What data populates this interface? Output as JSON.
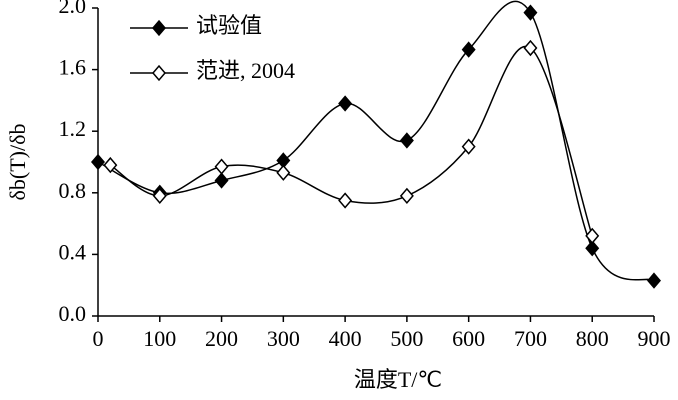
{
  "chart_data": {
    "type": "line",
    "xlabel": "温度T/℃",
    "ylabel": "δb(T)/δb",
    "xlim": [
      0,
      900
    ],
    "xticks": [
      0,
      100,
      200,
      300,
      400,
      500,
      600,
      700,
      800,
      900
    ],
    "ylim": [
      0,
      2
    ],
    "yticks": [
      {
        "value": 0,
        "label": "0.0"
      },
      {
        "value": 0.4,
        "label": "0.4"
      },
      {
        "value": 0.8,
        "label": "0.8"
      },
      {
        "value": 1.2,
        "label": "1.2"
      },
      {
        "value": 1.6,
        "label": "1.6"
      },
      {
        "value": 2,
        "label": "2.0"
      }
    ],
    "legend": "upper left",
    "series": [
      {
        "name": "试验值",
        "color": "#000000",
        "marker": "filled-diamond",
        "x": [
          0,
          100,
          200,
          300,
          400,
          500,
          600,
          700,
          800,
          900
        ],
        "values": [
          1.0,
          0.8,
          0.88,
          1.01,
          1.38,
          1.14,
          1.73,
          1.97,
          0.44,
          0.23
        ]
      },
      {
        "name": "范进, 2004",
        "color": "#000000",
        "marker": "open-diamond",
        "x": [
          20,
          100,
          200,
          300,
          400,
          500,
          600,
          700,
          800
        ],
        "values": [
          0.98,
          0.78,
          0.97,
          0.93,
          0.75,
          0.78,
          1.1,
          1.74,
          0.52
        ]
      }
    ]
  }
}
